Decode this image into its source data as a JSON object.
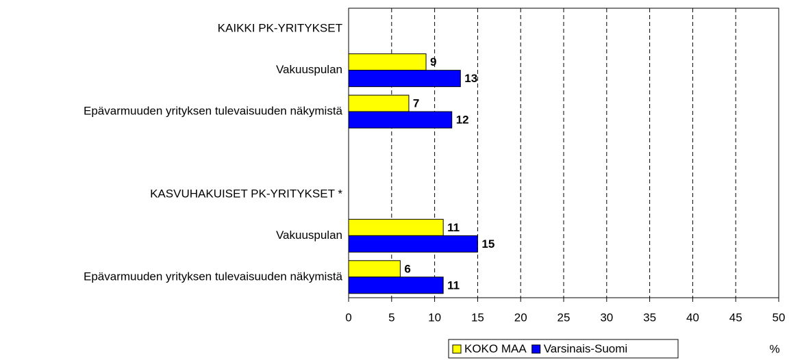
{
  "chart_data": {
    "type": "hbar",
    "categories": [
      "KAIKKI PK-YRITYKSET",
      "Vakuuspulan",
      "Epävarmuuden yrityksen tulevaisuuden näkymistä",
      null,
      "KASVUHAKUISET PK-YRITYKSET *",
      "Vakuuspulan",
      "Epävarmuuden yrityksen tulevaisuuden näkymistä"
    ],
    "series": [
      {
        "name": "KOKO MAA",
        "color": "#ffff00",
        "values": [
          null,
          9,
          7,
          null,
          null,
          11,
          6
        ]
      },
      {
        "name": "Varsinais-Suomi",
        "color": "#0000ff",
        "values": [
          null,
          13,
          12,
          null,
          null,
          15,
          11
        ]
      }
    ],
    "xlabel": "%",
    "xlim": [
      0,
      50
    ],
    "xticks": [
      0,
      5,
      10,
      15,
      20,
      25,
      30,
      35,
      40,
      45,
      50
    ],
    "grid": true,
    "legend": "bottom"
  }
}
